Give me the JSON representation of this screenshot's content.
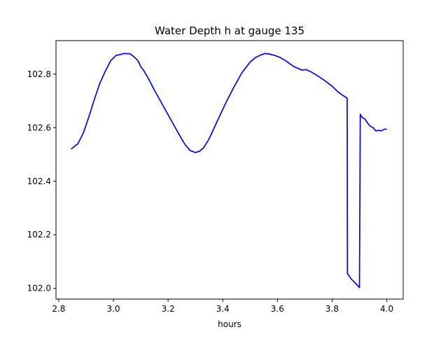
{
  "chart_data": {
    "type": "line",
    "title": "Water Depth h at gauge 135",
    "xlabel": "hours",
    "ylabel": "",
    "xlim": [
      2.79,
      4.06
    ],
    "ylim": [
      101.96,
      102.925
    ],
    "x_ticks": [
      2.8,
      3.0,
      3.2,
      3.4,
      3.6,
      3.8,
      4.0
    ],
    "x_tick_labels": [
      "2.8",
      "3.0",
      "3.2",
      "3.4",
      "3.6",
      "3.8",
      "4.0"
    ],
    "y_ticks": [
      102.0,
      102.2,
      102.4,
      102.6,
      102.8
    ],
    "y_tick_labels": [
      "102.0",
      "102.2",
      "102.4",
      "102.6",
      "102.8"
    ],
    "grid": false,
    "legend": "none",
    "series": [
      {
        "color": "#0000ff",
        "x": [
          2.845,
          2.87,
          2.89,
          2.91,
          2.93,
          2.95,
          2.97,
          2.99,
          3.01,
          3.025,
          3.04,
          3.06,
          3.075,
          3.09,
          3.1,
          3.11,
          3.13,
          3.15,
          3.18,
          3.21,
          3.24,
          3.26,
          3.28,
          3.3,
          3.315,
          3.33,
          3.35,
          3.38,
          3.41,
          3.44,
          3.47,
          3.5,
          3.52,
          3.54,
          3.555,
          3.57,
          3.59,
          3.61,
          3.63,
          3.66,
          3.69,
          3.705,
          3.72,
          3.74,
          3.77,
          3.8,
          3.82,
          3.84,
          3.855,
          3.856,
          3.87,
          3.885,
          3.9,
          3.903,
          3.906,
          3.91,
          3.915,
          3.92,
          3.93,
          3.94,
          3.95,
          3.96,
          3.97,
          3.98,
          3.99,
          4.0
        ],
        "y": [
          102.52,
          102.54,
          102.58,
          102.64,
          102.705,
          102.765,
          102.81,
          102.85,
          102.87,
          102.873,
          102.877,
          102.876,
          102.865,
          102.85,
          102.828,
          102.815,
          102.78,
          102.74,
          102.685,
          102.63,
          102.575,
          102.54,
          102.515,
          102.507,
          102.512,
          102.525,
          102.558,
          102.625,
          102.69,
          102.75,
          102.805,
          102.845,
          102.862,
          102.872,
          102.877,
          102.875,
          102.87,
          102.862,
          102.85,
          102.828,
          102.815,
          102.817,
          102.81,
          102.798,
          102.778,
          102.755,
          102.735,
          102.72,
          102.71,
          102.055,
          102.035,
          102.02,
          102.003,
          102.65,
          102.645,
          102.638,
          102.635,
          102.632,
          102.617,
          102.605,
          102.6,
          102.588,
          102.59,
          102.588,
          102.594,
          102.595
        ]
      }
    ]
  }
}
